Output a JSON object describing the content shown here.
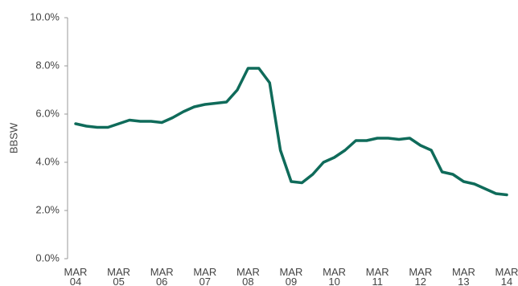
{
  "chart_data": {
    "type": "line",
    "y_label": "BBSW",
    "categories": [
      "MAR 04",
      null,
      null,
      null,
      "MAR 05",
      null,
      null,
      null,
      "MAR 06",
      null,
      null,
      null,
      "MAR 07",
      null,
      null,
      null,
      "MAR 08",
      null,
      null,
      null,
      "MAR 09",
      null,
      null,
      null,
      "MAR 10",
      null,
      null,
      null,
      "MAR 11",
      null,
      null,
      null,
      "MAR 12",
      null,
      null,
      null,
      "MAR 13",
      null,
      null,
      null,
      "MAR 14"
    ],
    "series": [
      {
        "name": "BBSW",
        "color": "#0f6b5a",
        "values": [
          5.6,
          5.5,
          5.45,
          5.45,
          5.6,
          5.75,
          5.7,
          5.7,
          5.65,
          5.85,
          6.1,
          6.3,
          6.4,
          6.45,
          6.5,
          7.0,
          7.9,
          7.9,
          7.3,
          4.5,
          3.2,
          3.15,
          3.5,
          4.0,
          4.2,
          4.5,
          4.9,
          4.9,
          5.0,
          5.0,
          4.95,
          5.0,
          4.7,
          4.5,
          3.6,
          3.5,
          3.2,
          3.1,
          2.9,
          2.7,
          2.65
        ]
      }
    ],
    "ylim": [
      0,
      10
    ],
    "yticks": [
      {
        "value": 0,
        "label": "0.0%"
      },
      {
        "value": 2,
        "label": "2.0%"
      },
      {
        "value": 4,
        "label": "4.0%"
      },
      {
        "value": 6,
        "label": "6.0%"
      },
      {
        "value": 8,
        "label": "8.0%"
      },
      {
        "value": 10,
        "label": "10.0%"
      }
    ],
    "grid": false
  }
}
